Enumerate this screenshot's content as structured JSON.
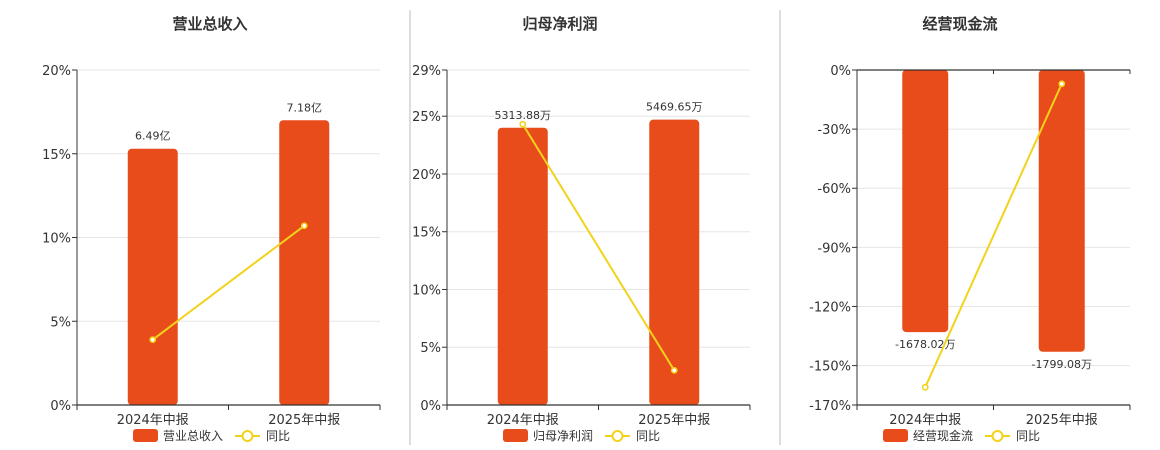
{
  "colors": {
    "bar": "#E84C1A",
    "line": "#F2D21B",
    "grid": "#E6E6E6",
    "axis": "#333333",
    "divider": "#BBBBBB"
  },
  "chart_data": [
    {
      "type": "bar",
      "title": "营业总收入",
      "categories": [
        "2024年中报",
        "2025年中报"
      ],
      "series": [
        {
          "name": "营业总收入",
          "kind": "bar",
          "values": [
            15.3,
            17.0
          ],
          "labels": [
            "6.49亿",
            "7.18亿"
          ]
        },
        {
          "name": "同比",
          "kind": "line",
          "values": [
            3.9,
            10.7
          ]
        }
      ],
      "y_ticks": [
        "0%",
        "5%",
        "10%",
        "15%",
        "20%"
      ],
      "ylim": [
        0,
        20
      ],
      "grid": true,
      "legend": "bottom"
    },
    {
      "type": "bar",
      "title": "归母净利润",
      "categories": [
        "2024年中报",
        "2025年中报"
      ],
      "series": [
        {
          "name": "归母净利润",
          "kind": "bar",
          "values": [
            24.0,
            24.7
          ],
          "labels": [
            "5313.88万",
            "5469.65万"
          ]
        },
        {
          "name": "同比",
          "kind": "line",
          "values": [
            24.3,
            3.0
          ]
        }
      ],
      "y_ticks": [
        "0%",
        "5%",
        "10%",
        "15%",
        "20%",
        "25%",
        "29%"
      ],
      "ylim": [
        0,
        29
      ],
      "grid": true,
      "legend": "bottom"
    },
    {
      "type": "bar",
      "title": "经营现金流",
      "categories": [
        "2024年中报",
        "2025年中报"
      ],
      "series": [
        {
          "name": "经营现金流",
          "kind": "bar",
          "values": [
            -133.0,
            -143.0
          ],
          "labels": [
            "-1678.02万",
            "-1799.08万"
          ]
        },
        {
          "name": "同比",
          "kind": "line",
          "values": [
            -161.0,
            -7.0
          ]
        }
      ],
      "y_ticks": [
        "0%",
        "-30%",
        "-60%",
        "-90%",
        "-120%",
        "-150%",
        "-170%"
      ],
      "ylim": [
        -170,
        0
      ],
      "grid": true,
      "legend": "bottom"
    }
  ]
}
